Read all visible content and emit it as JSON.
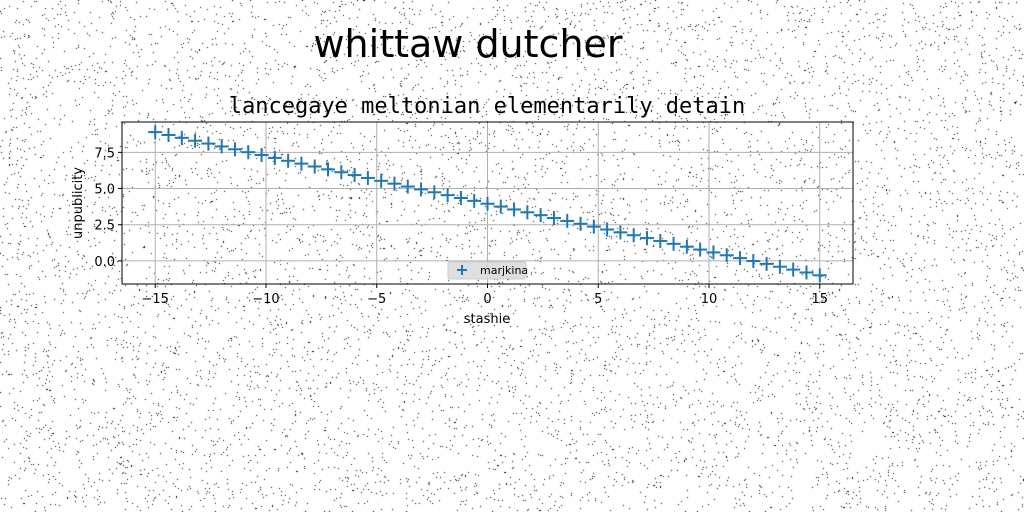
{
  "suptitle": "whittaw dutcher",
  "chart_data": {
    "type": "scatter",
    "title": "lancegaye meltonian elementarily detain",
    "xlabel": "stashie",
    "ylabel": "unpublicity",
    "xlim": [
      -16.5,
      16.5
    ],
    "ylim": [
      -1.6,
      9.6
    ],
    "xticks": [
      -15,
      -10,
      -5,
      0,
      5,
      10,
      15
    ],
    "xtick_labels": [
      "−15",
      "−10",
      "−5",
      "0",
      "5",
      "10",
      "15"
    ],
    "yticks": [
      0.0,
      2.5,
      5.0,
      7.5
    ],
    "ytick_labels": [
      "0.0",
      "2.5",
      "5.0",
      "7.5"
    ],
    "grid": true,
    "legend_position": "lower-center",
    "marker": "plus",
    "series_color": "#1f77b4",
    "series": [
      {
        "name": "marjkina",
        "x_start": -15,
        "x_end": 15,
        "x_step": 0.6,
        "y_start": 8.9,
        "y_end": -1.0
      }
    ]
  }
}
